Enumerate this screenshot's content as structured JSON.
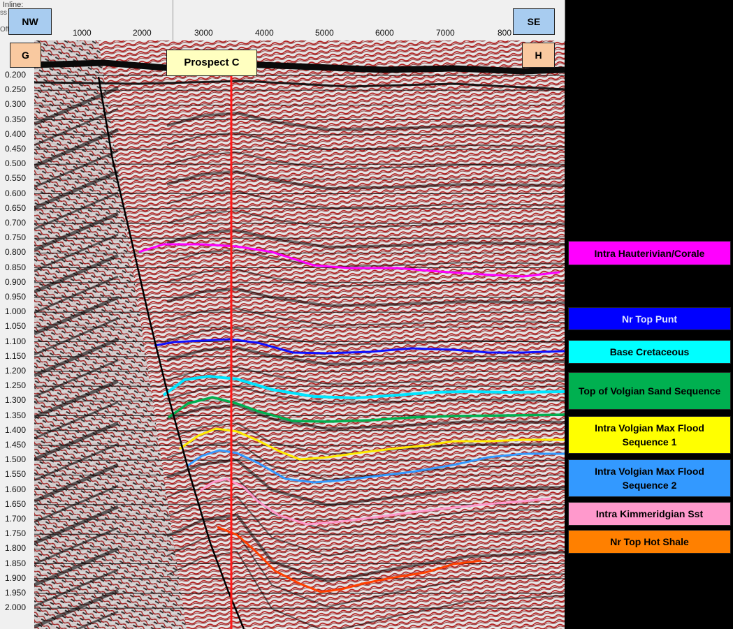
{
  "ruler": {
    "inline_label": "Inline:",
    "xss_label": "ss",
    "offset_label": "Offset",
    "trace_labels": [
      "1000",
      "2000",
      "3000",
      "4000",
      "5000",
      "6000",
      "7000",
      "800"
    ]
  },
  "time_axis": {
    "labels": [
      "0.200",
      "0.250",
      "0.300",
      "0.350",
      "0.400",
      "0.450",
      "0.500",
      "0.550",
      "0.600",
      "0.650",
      "0.700",
      "0.750",
      "0.800",
      "0.850",
      "0.900",
      "0.950",
      "1.000",
      "1.050",
      "1.100",
      "1.150",
      "1.200",
      "1.250",
      "1.300",
      "1.350",
      "1.400",
      "1.450",
      "1.500",
      "1.550",
      "1.600",
      "1.650",
      "1.700",
      "1.750",
      "1.800",
      "1.850",
      "1.900",
      "1.950",
      "2.000"
    ]
  },
  "tags": {
    "nw": "NW",
    "se": "SE",
    "g": "G",
    "h": "H",
    "prospect": "Prospect C"
  },
  "legend": [
    {
      "label": "Intra Hauterivian/Corale",
      "color": "#ff00ff"
    },
    {
      "label": "Nr Top Punt",
      "color": "#0000ff"
    },
    {
      "label": "Base Cretaceous",
      "color": "#00ffff"
    },
    {
      "label": "Top of Volgian  Sand Sequence",
      "color": "#00b050"
    },
    {
      "label": "Intra Volgian Max Flood Sequence 1",
      "color": "#ffff00"
    },
    {
      "label": "Intra Volgian Max Flood Sequence 2",
      "color": "#3399ff"
    },
    {
      "label": "Intra Kimmeridgian  Sst",
      "color": "#ff99cc"
    },
    {
      "label": "Nr Top Hot Shale",
      "color": "#ff8000"
    }
  ],
  "colors": {
    "background": "#000000",
    "ruler": "#f0f0f0",
    "seismic_red": "#a01010",
    "prospect_line": "#ff0000",
    "fault": "#000000"
  }
}
